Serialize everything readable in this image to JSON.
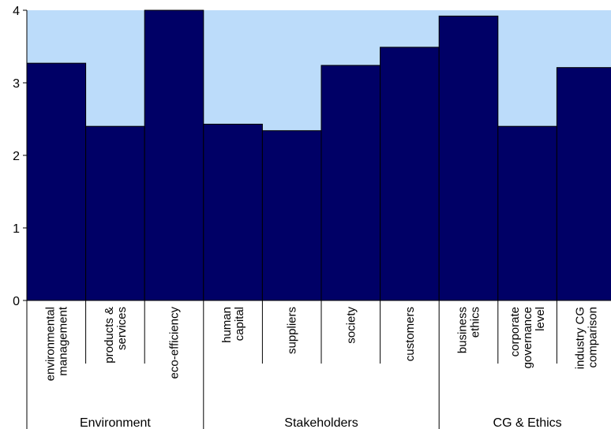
{
  "chart_data": {
    "type": "bar",
    "categories": [
      [
        "environmental",
        "management"
      ],
      [
        "products &",
        "services"
      ],
      [
        "eco-efficiency"
      ],
      [
        "human",
        "capital"
      ],
      [
        "suppliers"
      ],
      [
        "society"
      ],
      [
        "customers"
      ],
      [
        "business",
        "ethics"
      ],
      [
        "corporate",
        "governance",
        "level"
      ],
      [
        "industry CG",
        "comparison"
      ]
    ],
    "values": [
      3.27,
      2.4,
      4.0,
      2.43,
      2.34,
      3.24,
      3.49,
      3.92,
      2.4,
      3.21
    ],
    "groups": [
      {
        "label": "Environment",
        "count": 3
      },
      {
        "label": "Stakeholders",
        "count": 4
      },
      {
        "label": "CG & Ethics",
        "count": 3
      }
    ],
    "ylim": [
      0,
      4
    ],
    "yticks": [
      0,
      1,
      2,
      3,
      4
    ],
    "xlabel": "",
    "ylabel": "",
    "title": "",
    "colors": {
      "bar": "#000066",
      "bar_edge": "#000000",
      "plot_background": "#bcdcfa",
      "axis": "#000000"
    }
  }
}
